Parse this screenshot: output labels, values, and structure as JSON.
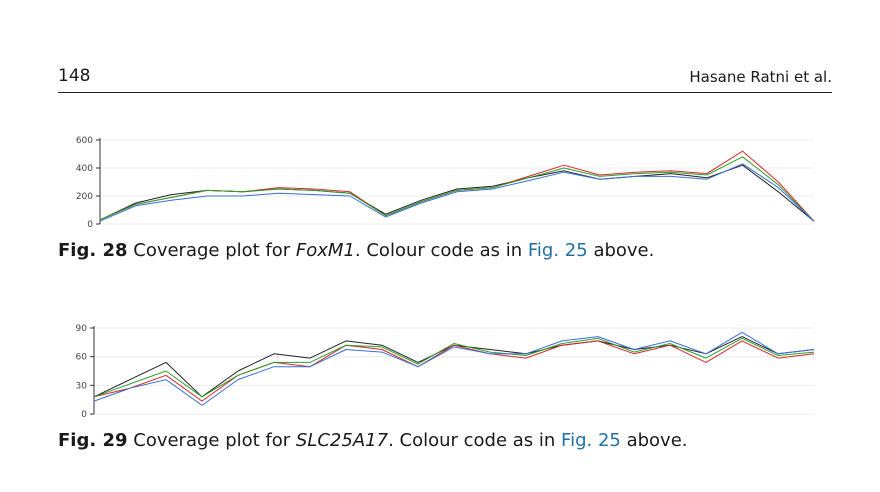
{
  "header": {
    "page_number": "148",
    "running_head": "Hasane Ratni et al."
  },
  "figures": [
    {
      "caption": {
        "label": "Fig. 28",
        "pre": "Coverage plot for ",
        "title": "FoxM1",
        "mid": ". Colour code as in ",
        "ref": "Fig. 25",
        "post": " above."
      }
    },
    {
      "caption": {
        "label": "Fig. 29",
        "pre": "Coverage plot for ",
        "title": "SLC25A17",
        "mid": ". Colour code as in ",
        "ref": "Fig. 25",
        "post": " above."
      }
    }
  ],
  "chart_data": [
    {
      "type": "line",
      "ylim": [
        0,
        600
      ],
      "yticks": [
        "0",
        "200",
        "400",
        "600"
      ],
      "grid": true,
      "colors": [
        "#222222",
        "#d62728",
        "#2ca02c",
        "#3a6fd8"
      ],
      "x": [
        0,
        0.05,
        0.1,
        0.15,
        0.2,
        0.25,
        0.3,
        0.35,
        0.4,
        0.45,
        0.5,
        0.55,
        0.6,
        0.65,
        0.7,
        0.75,
        0.8,
        0.85,
        0.9,
        0.95,
        1.0
      ],
      "series": [
        {
          "values": [
            30,
            150,
            210,
            240,
            230,
            250,
            240,
            220,
            70,
            170,
            250,
            270,
            330,
            380,
            320,
            340,
            360,
            330,
            420,
            230,
            20
          ]
        },
        {
          "values": [
            30,
            140,
            190,
            240,
            230,
            260,
            250,
            230,
            60,
            160,
            240,
            260,
            340,
            420,
            350,
            370,
            380,
            360,
            520,
            300,
            20
          ]
        },
        {
          "values": [
            30,
            140,
            190,
            240,
            230,
            250,
            240,
            220,
            60,
            160,
            240,
            260,
            330,
            400,
            340,
            360,
            370,
            350,
            480,
            280,
            20
          ]
        },
        {
          "values": [
            20,
            130,
            170,
            200,
            200,
            220,
            210,
            200,
            50,
            150,
            230,
            250,
            310,
            370,
            320,
            340,
            340,
            320,
            430,
            260,
            20
          ]
        }
      ]
    },
    {
      "type": "line",
      "ylim": [
        0,
        100
      ],
      "yticks": [
        "0",
        "30",
        "60",
        "90"
      ],
      "grid": true,
      "colors": [
        "#222222",
        "#d62728",
        "#2ca02c",
        "#3a6fd8"
      ],
      "x": [
        0,
        0.05,
        0.1,
        0.15,
        0.2,
        0.25,
        0.3,
        0.35,
        0.4,
        0.45,
        0.5,
        0.55,
        0.6,
        0.65,
        0.7,
        0.75,
        0.8,
        0.85,
        0.9,
        0.95,
        1.0
      ],
      "series": [
        {
          "values": [
            20,
            40,
            60,
            20,
            50,
            70,
            65,
            85,
            80,
            60,
            80,
            75,
            70,
            80,
            85,
            75,
            80,
            70,
            90,
            70,
            75
          ]
        },
        {
          "values": [
            20,
            30,
            45,
            15,
            45,
            60,
            55,
            80,
            75,
            55,
            80,
            70,
            65,
            80,
            85,
            70,
            80,
            60,
            85,
            65,
            70
          ]
        },
        {
          "values": [
            20,
            35,
            50,
            20,
            45,
            60,
            60,
            80,
            78,
            58,
            82,
            72,
            68,
            82,
            88,
            72,
            82,
            65,
            88,
            68,
            72
          ]
        },
        {
          "values": [
            15,
            30,
            40,
            10,
            40,
            55,
            55,
            75,
            72,
            55,
            78,
            70,
            70,
            85,
            90,
            75,
            85,
            70,
            95,
            70,
            75
          ]
        }
      ]
    }
  ]
}
